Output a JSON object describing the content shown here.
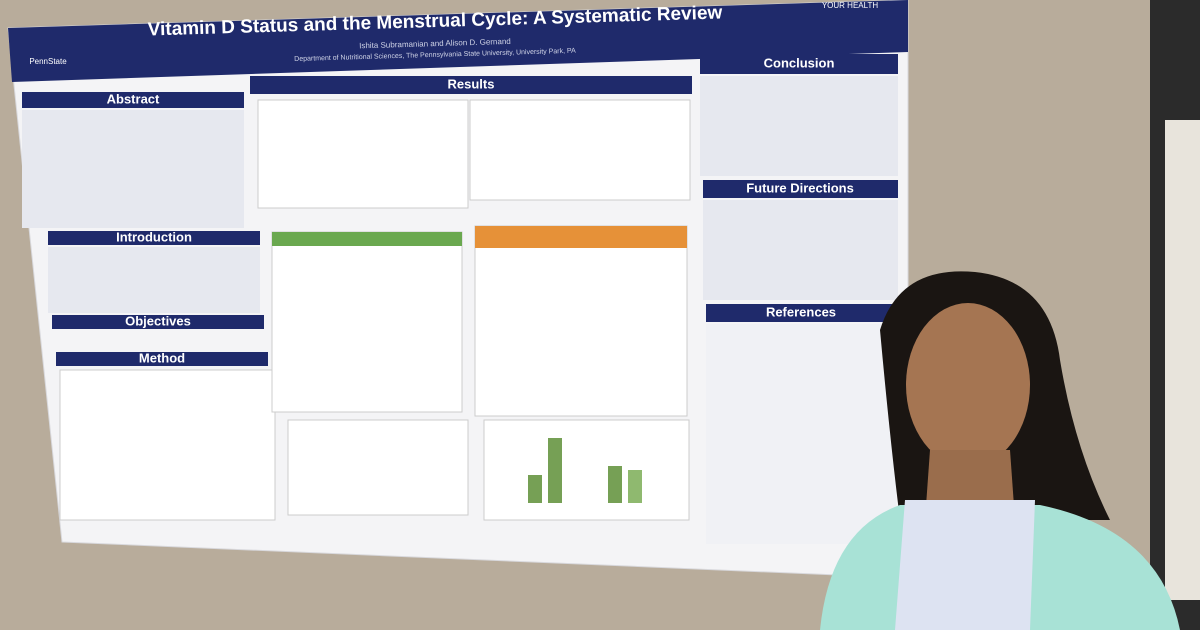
{
  "poster": {
    "title": "Vitamin D Status and the Menstrual Cycle: A Systematic Review",
    "authors": "Ishita Subramanian and Alison D. Gernand",
    "affiliation": "Department of Nutritional Sciences, The Pennsylvania State University, University Park, PA",
    "logo": "PennState",
    "corner_logo": "YOUR HEALTH",
    "sections": {
      "abstract": "Abstract",
      "introduction": "Introduction",
      "objectives": "Objectives",
      "method": "Method",
      "results": "Results",
      "conclusion": "Conclusion",
      "future": "Future Directions",
      "references": "References"
    }
  }
}
